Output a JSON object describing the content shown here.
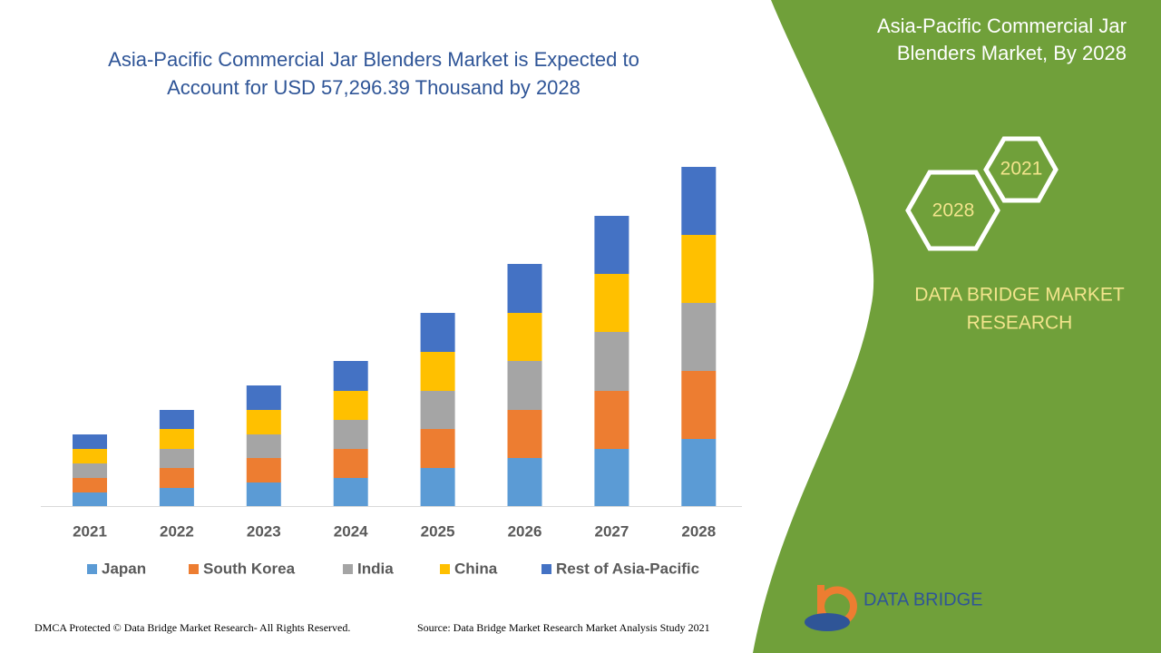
{
  "chart_data": {
    "type": "stacked-bar",
    "title": [
      "Asia-Pacific Commercial Jar Blenders Market is Expected to",
      "Account for USD 57,296.39 Thousand by 2028"
    ],
    "categories": [
      "2021",
      "2022",
      "2023",
      "2024",
      "2025",
      "2026",
      "2027",
      "2028"
    ],
    "series": [
      {
        "name": "Japan",
        "color": "#5b9bd5",
        "values": [
          15,
          20,
          26,
          31,
          42,
          53,
          63,
          74
        ]
      },
      {
        "name": "South Korea",
        "color": "#ed7d31",
        "values": [
          16,
          22,
          27,
          32,
          43,
          53,
          64,
          75
        ]
      },
      {
        "name": "India",
        "color": "#a5a5a5",
        "values": [
          16,
          21,
          26,
          32,
          42,
          54,
          65,
          75
        ]
      },
      {
        "name": "China",
        "color": "#ffc000",
        "values": [
          16,
          22,
          27,
          32,
          43,
          53,
          64,
          75
        ]
      },
      {
        "name": "Rest of Asia-Pacific",
        "color": "#4472c4",
        "values": [
          16,
          21,
          27,
          33,
          43,
          54,
          64,
          75
        ]
      }
    ]
  },
  "panel": {
    "title": [
      "Asia-Pacific Commercial Jar",
      "Blenders Market, By 2028"
    ],
    "hex_start": "2021",
    "hex_end": "2028",
    "brand": [
      "DATA BRIDGE MARKET",
      "RESEARCH"
    ],
    "logo": "DATA BRIDGE"
  },
  "footer": {
    "left": "DMCA Protected © Data Bridge Market Research- All Rights Reserved.",
    "right": "Source: Data Bridge Market Research Market Analysis Study 2021"
  }
}
